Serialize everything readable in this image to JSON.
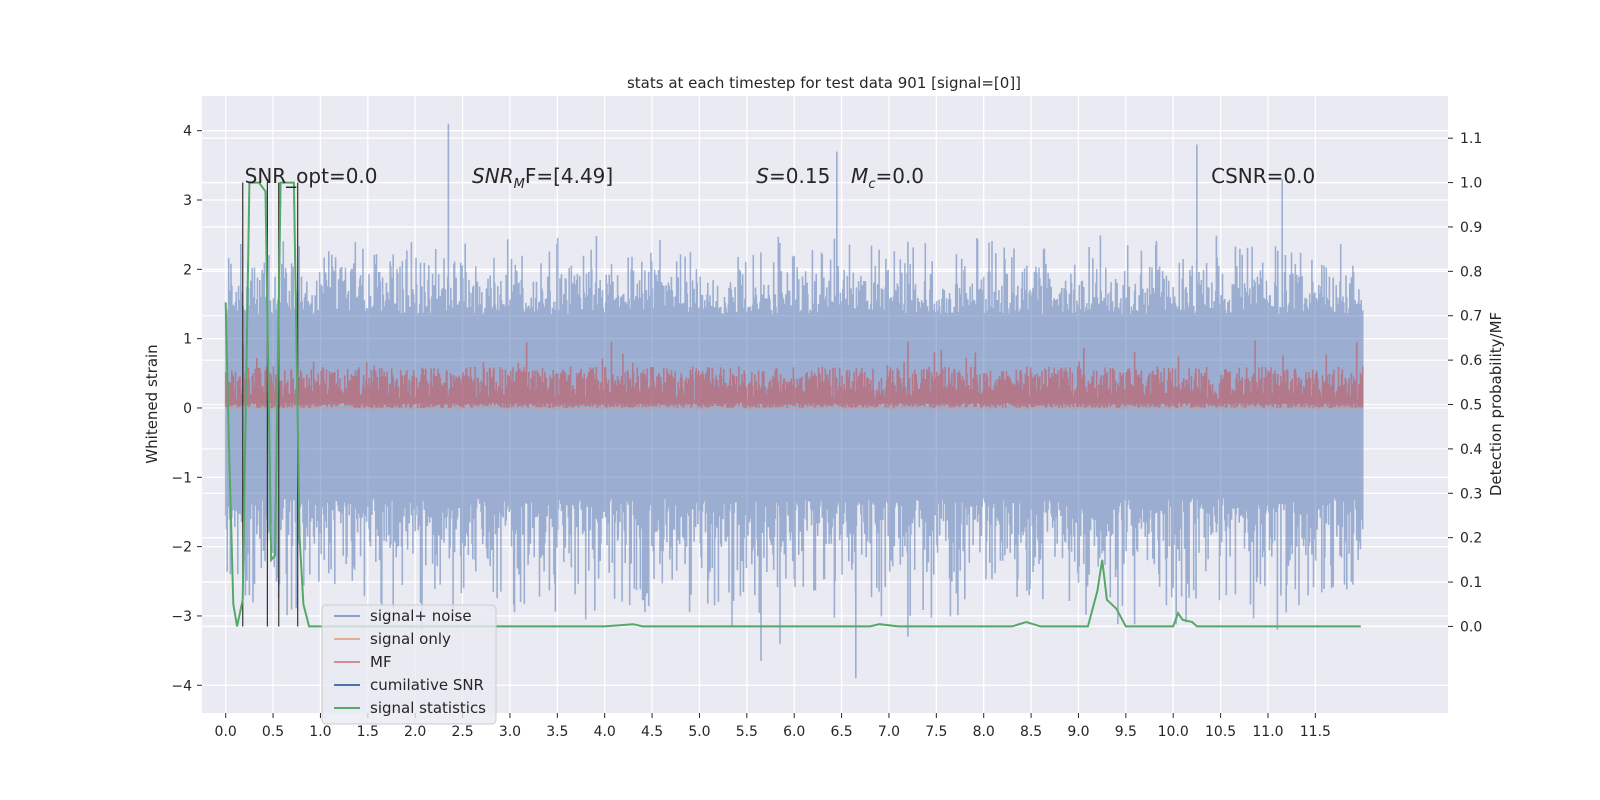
{
  "chart_data": {
    "type": "line",
    "title": "stats at each timestep for test data 901 [signal=[0]]",
    "ylabel": "Whitened strain",
    "y2label": "Detection probability/MF",
    "xlim": [
      -0.25,
      12.9
    ],
    "ylim": [
      -4.4,
      4.5
    ],
    "y2lim": [
      -0.195,
      1.195
    ],
    "xticks": [
      0.0,
      0.5,
      1.0,
      1.5,
      2.0,
      2.5,
      3.0,
      3.5,
      4.0,
      4.5,
      5.0,
      5.5,
      6.0,
      6.5,
      7.0,
      7.5,
      8.0,
      8.5,
      9.0,
      9.5,
      10.0,
      10.5,
      11.0,
      11.5
    ],
    "yticks": [
      -4,
      -3,
      -2,
      -1,
      0,
      1,
      2,
      3,
      4
    ],
    "y2ticks": [
      0.0,
      0.1,
      0.2,
      0.3,
      0.4,
      0.5,
      0.6,
      0.7,
      0.8,
      0.9,
      1.0,
      1.1
    ],
    "grid": true,
    "legend_position": "lower-left",
    "annotations": [
      {
        "text": "SNR_opt=0.0",
        "x": 0.2,
        "y": 3.2
      },
      {
        "text": "SNR_MF=[4.49]",
        "x": 2.6,
        "y": 3.2
      },
      {
        "text": "S=0.15",
        "x": 5.6,
        "y": 3.2
      },
      {
        "text": "M_c=0.0",
        "x": 6.6,
        "y": 3.2
      },
      {
        "text": "CSNR=0.0",
        "x": 10.4,
        "y": 3.2
      }
    ],
    "series": [
      {
        "name": "signal+ noise",
        "axis": "left",
        "color": "#4c72b0",
        "band": {
          "x_start": 0.0,
          "x_end": 12.0,
          "core_low": -1.3,
          "core_high": 1.35,
          "spike_low": -3.3,
          "spike_high": 2.6
        },
        "extremes": [
          [
            0.05,
            -2.4
          ],
          [
            0.25,
            -2.7
          ],
          [
            2.35,
            4.1
          ],
          [
            3.8,
            -3.05
          ],
          [
            5.65,
            -3.65
          ],
          [
            5.85,
            -3.4
          ],
          [
            6.45,
            3.7
          ],
          [
            6.65,
            -3.9
          ],
          [
            7.2,
            -3.3
          ],
          [
            10.25,
            3.8
          ],
          [
            11.1,
            -3.2
          ],
          [
            11.15,
            3.3
          ]
        ]
      },
      {
        "name": "signal only",
        "axis": "left",
        "color": "#dd8452",
        "values_note": "flat at 0"
      },
      {
        "name": "MF",
        "axis": "left",
        "color": "#c44e52",
        "band": {
          "x_start": 0.0,
          "x_end": 12.0,
          "low": 0.0,
          "high": 0.6,
          "peak": 1.0
        }
      },
      {
        "name": "cumilative SNR",
        "axis": "left",
        "color": "#4c72b0"
      },
      {
        "name": "signal statistics",
        "axis": "right",
        "color": "#55a868",
        "x": [
          0.0,
          0.03,
          0.08,
          0.12,
          0.18,
          0.25,
          0.3,
          0.35,
          0.42,
          0.48,
          0.52,
          0.58,
          0.62,
          0.67,
          0.72,
          0.78,
          0.82,
          0.88,
          0.95,
          1.05,
          2.0,
          3.0,
          4.0,
          4.3,
          4.4,
          5.0,
          6.0,
          6.8,
          6.9,
          7.1,
          8.0,
          8.3,
          8.45,
          8.6,
          9.1,
          9.2,
          9.25,
          9.3,
          9.4,
          9.5,
          9.6,
          10.0,
          10.05,
          10.1,
          10.2,
          10.25,
          10.3,
          11.0,
          11.98
        ],
        "y": [
          0.73,
          0.45,
          0.05,
          0.0,
          0.06,
          1.0,
          1.0,
          1.0,
          0.98,
          0.15,
          0.16,
          1.0,
          1.0,
          1.0,
          1.0,
          0.2,
          0.05,
          0.0,
          0.0,
          0.0,
          0.0,
          0.0,
          0.0,
          0.005,
          0.0,
          0.0,
          0.0,
          0.0,
          0.005,
          0.0,
          0.0,
          0.0,
          0.01,
          0.0,
          0.0,
          0.08,
          0.15,
          0.06,
          0.04,
          0.0,
          0.0,
          0.0,
          0.03,
          0.015,
          0.01,
          0.0,
          0.0,
          0.0,
          0.0
        ]
      }
    ],
    "black_lines_x": [
      0.18,
      0.44,
      0.56,
      0.76
    ],
    "black_lines_top": 1.0
  }
}
